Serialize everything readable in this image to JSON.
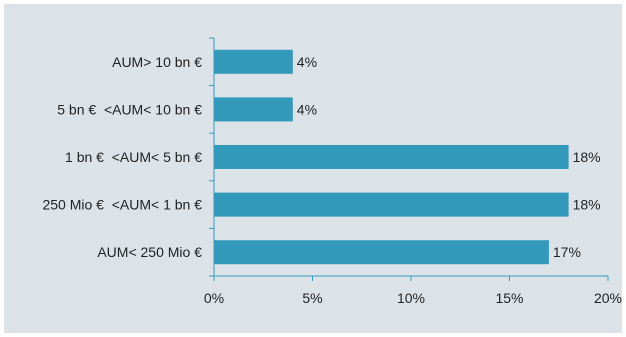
{
  "chart_data": {
    "type": "bar",
    "orientation": "horizontal",
    "categories": [
      "AUM> 10 bn €",
      "5 bn €  <AUM< 10 bn €",
      "1 bn €  <AUM< 5 bn €",
      "250 Mio €  <AUM< 1 bn €",
      "AUM< 250 Mio €"
    ],
    "values": [
      4,
      4,
      18,
      18,
      17
    ],
    "value_labels": [
      "4%",
      "4%",
      "18%",
      "18%",
      "17%"
    ],
    "xlim": [
      0,
      20
    ],
    "x_ticks": [
      0,
      5,
      10,
      15,
      20
    ],
    "x_tick_labels": [
      "0%",
      "5%",
      "10%",
      "15%",
      "20%"
    ],
    "grid": false,
    "legend": "none",
    "colors": {
      "bar": "#3399bb",
      "background": "#dbe3e9",
      "axis": "#3399bb"
    }
  }
}
